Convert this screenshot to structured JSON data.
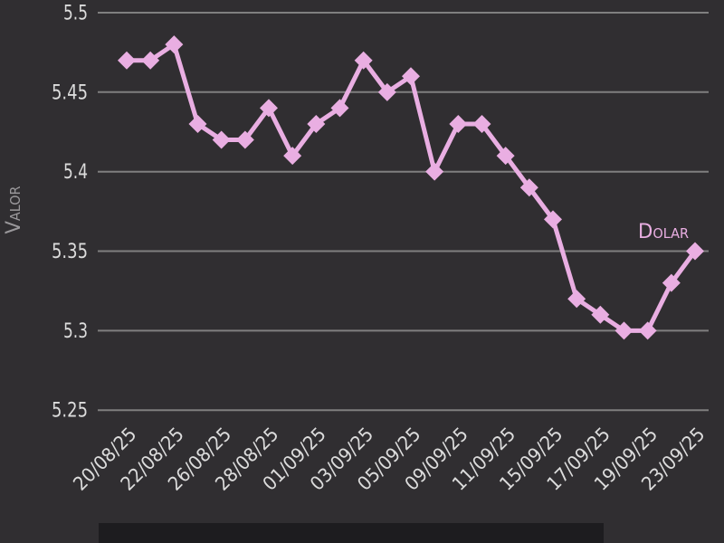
{
  "page": {
    "background_color": "#302e31",
    "bottom_panel_color": "#1d1c1f"
  },
  "chart_data": {
    "type": "line",
    "ylabel": "Valor",
    "series": [
      {
        "name": "Dolar",
        "values": [
          5.47,
          5.47,
          5.48,
          5.43,
          5.42,
          5.42,
          5.44,
          5.41,
          5.43,
          5.44,
          5.47,
          5.45,
          5.46,
          5.4,
          5.43,
          5.43,
          5.41,
          5.39,
          5.37,
          5.32,
          5.31,
          5.3,
          5.3,
          5.33,
          5.35
        ]
      }
    ],
    "x_tick_labels": [
      "20/08/25",
      "22/08/25",
      "26/08/25",
      "28/08/25",
      "01/09/25",
      "03/09/25",
      "05/09/25",
      "09/09/25",
      "11/09/25",
      "15/09/25",
      "17/09/25",
      "19/09/25",
      "23/09/25"
    ],
    "points_per_x_tick": 2,
    "y_tick_labels": [
      "5.5",
      "5.45",
      "5.4",
      "5.35",
      "5.3",
      "5.25"
    ],
    "y_tick_values": [
      5.5,
      5.45,
      5.4,
      5.35,
      5.3,
      5.25
    ],
    "ylim": [
      5.25,
      5.5
    ],
    "grid": true,
    "legend_position": "inline-right",
    "line_color": "#e9aee2",
    "grid_color": "#7f7f7f",
    "tick_label_color": "#dcdcdc",
    "ylabel_color": "#9a989b",
    "marker": "diamond"
  }
}
